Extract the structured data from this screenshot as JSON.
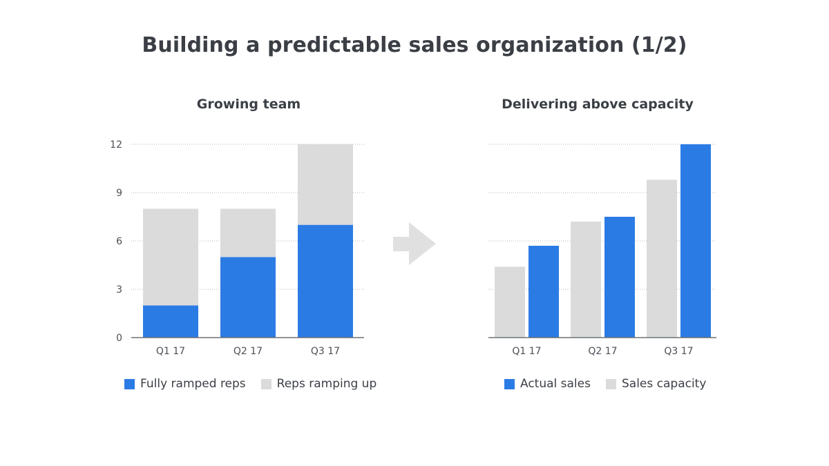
{
  "title": "Building a predictable sales organization (1/2)",
  "colors": {
    "blue": "#2b7be4",
    "gray": "#dbdbdb",
    "arrow": "#e0e0e0",
    "text": "#3b3f45"
  },
  "icons": {
    "arrow": "arrow-right-icon"
  },
  "chart_data": [
    {
      "type": "bar",
      "stacked": true,
      "title": "Growing team",
      "categories": [
        "Q1 17",
        "Q2 17",
        "Q3 17"
      ],
      "series": [
        {
          "name": "Fully ramped reps",
          "values": [
            2,
            5,
            7
          ],
          "color": "#2b7be4"
        },
        {
          "name": "Reps ramping up",
          "values": [
            6,
            3,
            5
          ],
          "color": "#dbdbdb"
        }
      ],
      "yticks": [
        "0",
        "3",
        "6",
        "9",
        "12"
      ],
      "ylim": [
        0,
        12
      ],
      "grid": true,
      "legend": "bottom"
    },
    {
      "type": "bar",
      "stacked": false,
      "title": "Delivering above capacity",
      "categories": [
        "Q1 17",
        "Q2 17",
        "Q3 17"
      ],
      "series": [
        {
          "name": "Sales capacity",
          "values": [
            4.4,
            7.2,
            9.8
          ],
          "color": "#dbdbdb"
        },
        {
          "name": "Actual sales",
          "values": [
            5.7,
            7.5,
            12
          ],
          "color": "#2b7be4"
        }
      ],
      "legend_order": [
        "Actual sales",
        "Sales capacity"
      ],
      "ylim": [
        0,
        12
      ],
      "grid": true,
      "legend": "bottom"
    }
  ]
}
